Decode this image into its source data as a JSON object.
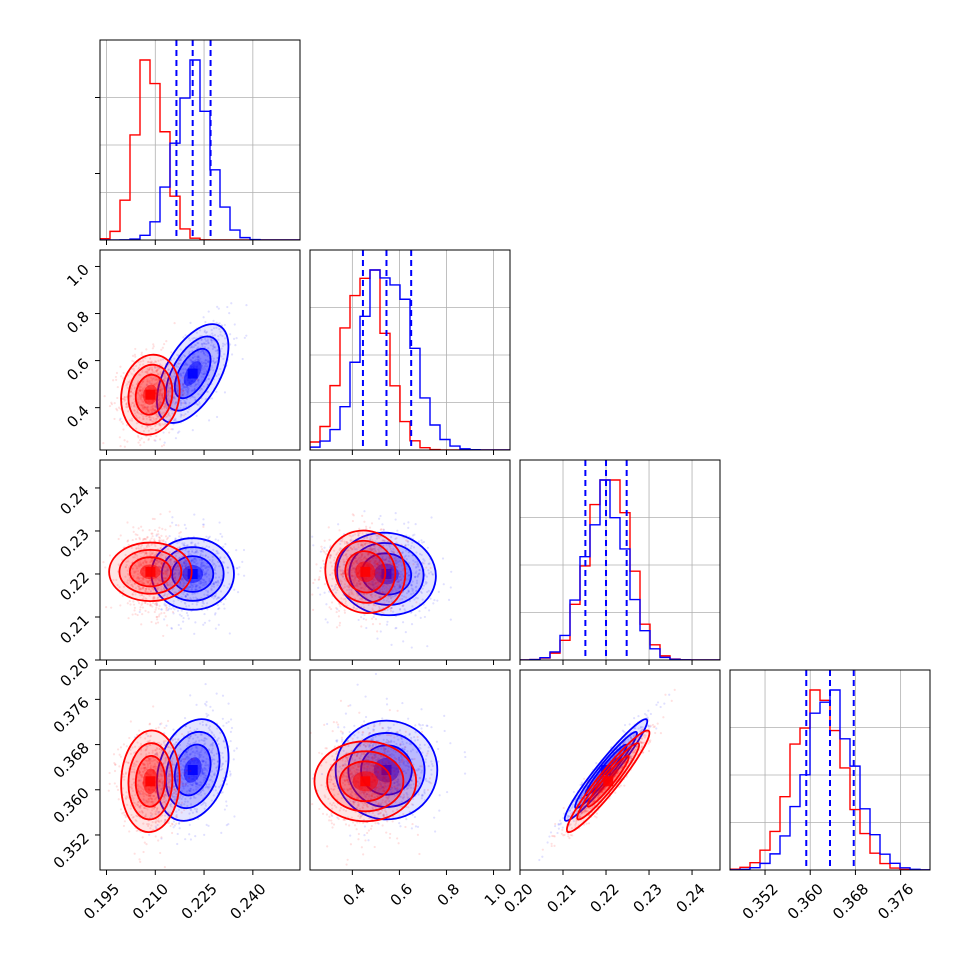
{
  "chart_data": {
    "type": "corner",
    "title": "",
    "colors": {
      "series_a": "#0000ff",
      "series_b": "#ff0000"
    },
    "grid": true,
    "legend": "none",
    "parameters": [
      {
        "ticks": [
          "0.195",
          "0.210",
          "0.225",
          "0.240"
        ],
        "range": [
          0.193,
          0.2545
        ]
      },
      {
        "ticks": [
          "0.4",
          "0.6",
          "0.8",
          "1.0"
        ],
        "range": [
          0.22,
          1.07
        ]
      },
      {
        "ticks": [
          "0.20",
          "0.21",
          "0.22",
          "0.23",
          "0.24"
        ],
        "range": [
          0.2,
          0.2465
        ]
      },
      {
        "ticks": [
          "0.352",
          "0.360",
          "0.368",
          "0.376"
        ],
        "range": [
          0.3458,
          0.3812
        ]
      }
    ],
    "series": [
      {
        "color": "#0000ff",
        "peak": [
          0.2215,
          0.545,
          0.22,
          0.3635
        ],
        "sigma": [
          0.0055,
          0.105,
          0.0048,
          0.0045
        ],
        "quantile_lines": [
          [
            0.2165,
            0.2215,
            0.227
          ],
          [
            0.445,
            0.545,
            0.65
          ],
          [
            0.2152,
            0.22,
            0.2248
          ],
          [
            0.3593,
            0.3635,
            0.3677
          ]
        ]
      },
      {
        "color": "#ff0000",
        "peak": [
          0.2085,
          0.455,
          0.2205,
          0.3615
        ],
        "sigma": [
          0.0045,
          0.085,
          0.0048,
          0.0045
        ]
      }
    ],
    "correlations": [
      {
        "pair": [
          0,
          1
        ],
        "series_a": 0.55,
        "series_b": 0.1
      },
      {
        "pair": [
          0,
          2
        ],
        "series_a": 0.0,
        "series_b": 0.0
      },
      {
        "pair": [
          1,
          2
        ],
        "series_a": -0.05,
        "series_b": -0.05
      },
      {
        "pair": [
          0,
          3
        ],
        "series_a": 0.25,
        "series_b": 0.05
      },
      {
        "pair": [
          1,
          3
        ],
        "series_a": 0.0,
        "series_b": 0.0
      },
      {
        "pair": [
          2,
          3
        ],
        "series_a": 0.96,
        "series_b": 0.95
      }
    ]
  }
}
